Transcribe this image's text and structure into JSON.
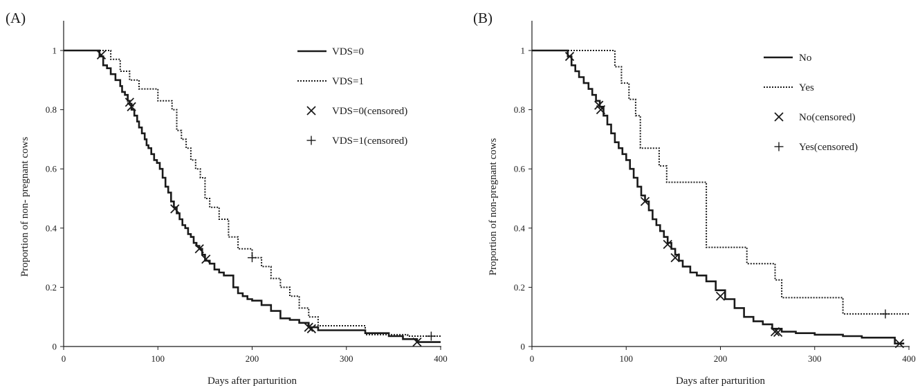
{
  "chart_data": [
    {
      "type": "line",
      "panel_label": "(A)",
      "xlabel": "Days after parturition",
      "ylabel": "Proportion of non- pregnant cows",
      "xlim": [
        0,
        400
      ],
      "ylim": [
        0,
        1
      ],
      "x_ticks": [
        "0",
        "100",
        "200",
        "300",
        "400"
      ],
      "y_ticks": [
        "0",
        "0.2",
        "0.4",
        "0.6",
        "0.8",
        "1"
      ],
      "legend_position": "top-right",
      "series": [
        {
          "name": "VDS=0",
          "style": "solid",
          "x": [
            0,
            38,
            42,
            46,
            50,
            55,
            60,
            62,
            65,
            68,
            70,
            72,
            75,
            78,
            80,
            83,
            86,
            88,
            90,
            93,
            96,
            99,
            102,
            105,
            108,
            111,
            114,
            117,
            120,
            123,
            126,
            129,
            132,
            135,
            138,
            141,
            144,
            147,
            150,
            155,
            160,
            165,
            170,
            180,
            185,
            190,
            195,
            200,
            210,
            220,
            230,
            240,
            250,
            260,
            270,
            300,
            320,
            345,
            360,
            375,
            380,
            400
          ],
          "y": [
            1,
            0.98,
            0.95,
            0.94,
            0.92,
            0.9,
            0.88,
            0.86,
            0.85,
            0.83,
            0.82,
            0.8,
            0.78,
            0.76,
            0.74,
            0.72,
            0.7,
            0.68,
            0.67,
            0.65,
            0.63,
            0.62,
            0.6,
            0.57,
            0.54,
            0.52,
            0.49,
            0.47,
            0.45,
            0.43,
            0.41,
            0.4,
            0.38,
            0.37,
            0.35,
            0.34,
            0.33,
            0.31,
            0.29,
            0.28,
            0.26,
            0.25,
            0.24,
            0.2,
            0.18,
            0.17,
            0.16,
            0.155,
            0.14,
            0.12,
            0.095,
            0.09,
            0.08,
            0.065,
            0.055,
            0.055,
            0.045,
            0.035,
            0.025,
            0.015,
            0.015,
            0.015
          ]
        },
        {
          "name": "VDS=1",
          "style": "dotted",
          "x": [
            0,
            42,
            50,
            60,
            70,
            80,
            90,
            100,
            110,
            115,
            120,
            125,
            130,
            135,
            140,
            145,
            150,
            155,
            160,
            165,
            175,
            185,
            195,
            200,
            210,
            220,
            230,
            240,
            250,
            260,
            270,
            320,
            340,
            365,
            400
          ],
          "y": [
            1,
            1,
            0.97,
            0.93,
            0.9,
            0.87,
            0.87,
            0.83,
            0.83,
            0.8,
            0.73,
            0.7,
            0.67,
            0.63,
            0.6,
            0.57,
            0.5,
            0.47,
            0.47,
            0.43,
            0.37,
            0.33,
            0.33,
            0.3,
            0.27,
            0.23,
            0.2,
            0.17,
            0.13,
            0.1,
            0.07,
            0.04,
            0.04,
            0.035,
            0.035
          ]
        }
      ],
      "censored": [
        {
          "name": "VDS=0(censored)",
          "marker": "×",
          "x": [
            40,
            70,
            72,
            118,
            144,
            151,
            260,
            263,
            375
          ],
          "y": [
            0.985,
            0.825,
            0.81,
            0.465,
            0.33,
            0.295,
            0.065,
            0.06,
            0.015
          ]
        },
        {
          "name": "VDS=1(censored)",
          "marker": "+",
          "x": [
            200,
            390
          ],
          "y": [
            0.3,
            0.035
          ]
        }
      ]
    },
    {
      "type": "line",
      "panel_label": "(B)",
      "xlabel": "Days after parturition",
      "ylabel": "Proportion of non-pregnant cows",
      "xlim": [
        0,
        400
      ],
      "ylim": [
        0,
        1
      ],
      "x_ticks": [
        "0",
        "100",
        "200",
        "300",
        "400"
      ],
      "y_ticks": [
        "0",
        "0.2",
        "0.4",
        "0.6",
        "0.8",
        "1"
      ],
      "legend_position": "top-right",
      "series": [
        {
          "name": "No",
          "style": "solid",
          "x": [
            0,
            38,
            42,
            46,
            50,
            55,
            60,
            64,
            68,
            72,
            76,
            80,
            84,
            88,
            92,
            96,
            100,
            104,
            108,
            112,
            116,
            120,
            124,
            128,
            132,
            136,
            140,
            144,
            148,
            152,
            156,
            160,
            168,
            175,
            185,
            195,
            205,
            215,
            225,
            235,
            245,
            255,
            265,
            280,
            300,
            330,
            350,
            375,
            385,
            395
          ],
          "y": [
            1,
            0.98,
            0.95,
            0.93,
            0.91,
            0.89,
            0.87,
            0.85,
            0.83,
            0.81,
            0.78,
            0.75,
            0.72,
            0.69,
            0.67,
            0.65,
            0.63,
            0.6,
            0.57,
            0.54,
            0.51,
            0.49,
            0.46,
            0.43,
            0.41,
            0.39,
            0.37,
            0.35,
            0.33,
            0.31,
            0.29,
            0.27,
            0.25,
            0.24,
            0.22,
            0.19,
            0.16,
            0.13,
            0.1,
            0.085,
            0.075,
            0.06,
            0.05,
            0.045,
            0.04,
            0.035,
            0.03,
            0.03,
            0.01,
            0.01
          ]
        },
        {
          "name": "Yes",
          "style": "dotted",
          "x": [
            0,
            80,
            88,
            95,
            103,
            110,
            115,
            135,
            143,
            150,
            185,
            190,
            228,
            258,
            265,
            275,
            330,
            340,
            400
          ],
          "y": [
            1,
            1,
            0.945,
            0.89,
            0.835,
            0.78,
            0.67,
            0.61,
            0.555,
            0.555,
            0.335,
            0.335,
            0.28,
            0.225,
            0.165,
            0.165,
            0.11,
            0.11,
            0.11
          ]
        }
      ],
      "censored": [
        {
          "name": "No(censored)",
          "marker": "×",
          "x": [
            40,
            71,
            73,
            120,
            144,
            152,
            200,
            258,
            261,
            390
          ],
          "y": [
            0.98,
            0.815,
            0.8,
            0.49,
            0.345,
            0.3,
            0.17,
            0.05,
            0.048,
            0.01
          ]
        },
        {
          "name": "Yes(censored)",
          "marker": "+",
          "x": [
            375
          ],
          "y": [
            0.11
          ]
        }
      ]
    }
  ]
}
